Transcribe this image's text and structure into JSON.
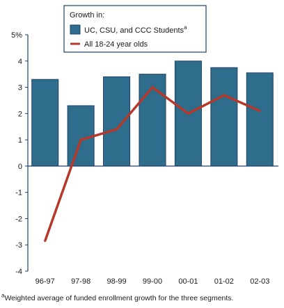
{
  "chart_data": {
    "type": "bar",
    "categories": [
      "96-97",
      "97-98",
      "98-99",
      "99-00",
      "00-01",
      "01-02",
      "02-03"
    ],
    "series": [
      {
        "name": "UC, CSU, and CCC Students",
        "kind": "bar",
        "values": [
          3.3,
          2.3,
          3.4,
          3.5,
          4.0,
          3.75,
          3.55
        ],
        "color": "#2f6d8c"
      },
      {
        "name": "All 18-24 year olds",
        "kind": "line",
        "values": [
          -2.85,
          1.0,
          1.4,
          3.0,
          2.0,
          2.7,
          2.1
        ],
        "color": "#b5382a"
      }
    ],
    "ylim": [
      -4,
      5
    ],
    "yticks": [
      "-4",
      "-3",
      "-2",
      "-1",
      "0",
      "1",
      "2",
      "3",
      "4",
      "5%"
    ],
    "grid": false,
    "legend": {
      "position": "top-left",
      "title": "Growth in:",
      "bar_label": "UC, CSU, and CCC Students",
      "bar_sup": "a",
      "line_label": "All 18-24 year olds"
    }
  },
  "footnote": {
    "marker": "a",
    "text": "Weighted average of funded enrollment growth for the three segments."
  }
}
